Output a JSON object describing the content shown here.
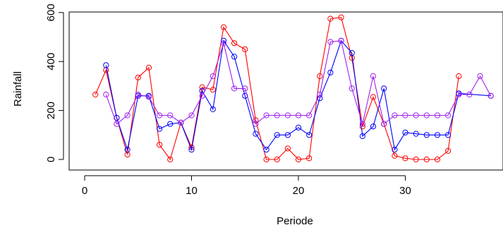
{
  "chart_data": {
    "type": "line",
    "title": "",
    "xlabel": "Periode",
    "ylabel": "Rainfall",
    "xlim": [
      1,
      38
    ],
    "ylim": [
      0,
      580
    ],
    "x_ticks": [
      0,
      10,
      20,
      30
    ],
    "y_ticks": [
      0,
      200,
      400,
      600
    ],
    "grid": false,
    "legend": "none",
    "series": [
      {
        "color": "#ff0000",
        "x": [
          1,
          2,
          3,
          4,
          5,
          6,
          7,
          8,
          9,
          10,
          11,
          12,
          13,
          14,
          15,
          16,
          17,
          18,
          19,
          20,
          21,
          22,
          23,
          24,
          25,
          26,
          27,
          28,
          29,
          30,
          31,
          32,
          33,
          34,
          35
        ],
        "values": [
          265,
          365,
          170,
          20,
          335,
          375,
          60,
          0,
          150,
          50,
          295,
          285,
          540,
          475,
          450,
          160,
          0,
          0,
          45,
          0,
          5,
          340,
          575,
          580,
          415,
          135,
          255,
          145,
          15,
          5,
          0,
          0,
          0,
          35,
          340
        ]
      },
      {
        "color": "#0000ff",
        "x": [
          2,
          3,
          4,
          5,
          6,
          7,
          8,
          9,
          10,
          11,
          12,
          13,
          14,
          15,
          16,
          17,
          18,
          19,
          20,
          21,
          22,
          23,
          24,
          25,
          26,
          27,
          28,
          29,
          30,
          31,
          32,
          33,
          34,
          35,
          38
        ],
        "values": [
          385,
          170,
          40,
          260,
          260,
          125,
          145,
          150,
          40,
          280,
          205,
          485,
          420,
          260,
          105,
          40,
          100,
          100,
          130,
          100,
          250,
          355,
          485,
          435,
          95,
          135,
          290,
          40,
          110,
          105,
          100,
          100,
          100,
          270,
          260
        ]
      },
      {
        "color": "#a020f0",
        "x": [
          2,
          3,
          4,
          5,
          6,
          7,
          8,
          9,
          10,
          11,
          12,
          13,
          14,
          15,
          16,
          17,
          18,
          19,
          20,
          21,
          22,
          23,
          24,
          25,
          26,
          27,
          28,
          29,
          30,
          31,
          32,
          33,
          34,
          35,
          36,
          37,
          38
        ],
        "values": [
          265,
          145,
          180,
          265,
          255,
          180,
          180,
          150,
          180,
          260,
          340,
          475,
          290,
          290,
          145,
          180,
          180,
          180,
          180,
          180,
          265,
          480,
          485,
          290,
          145,
          340,
          145,
          180,
          180,
          180,
          180,
          180,
          180,
          265,
          265,
          340,
          260
        ]
      }
    ]
  }
}
